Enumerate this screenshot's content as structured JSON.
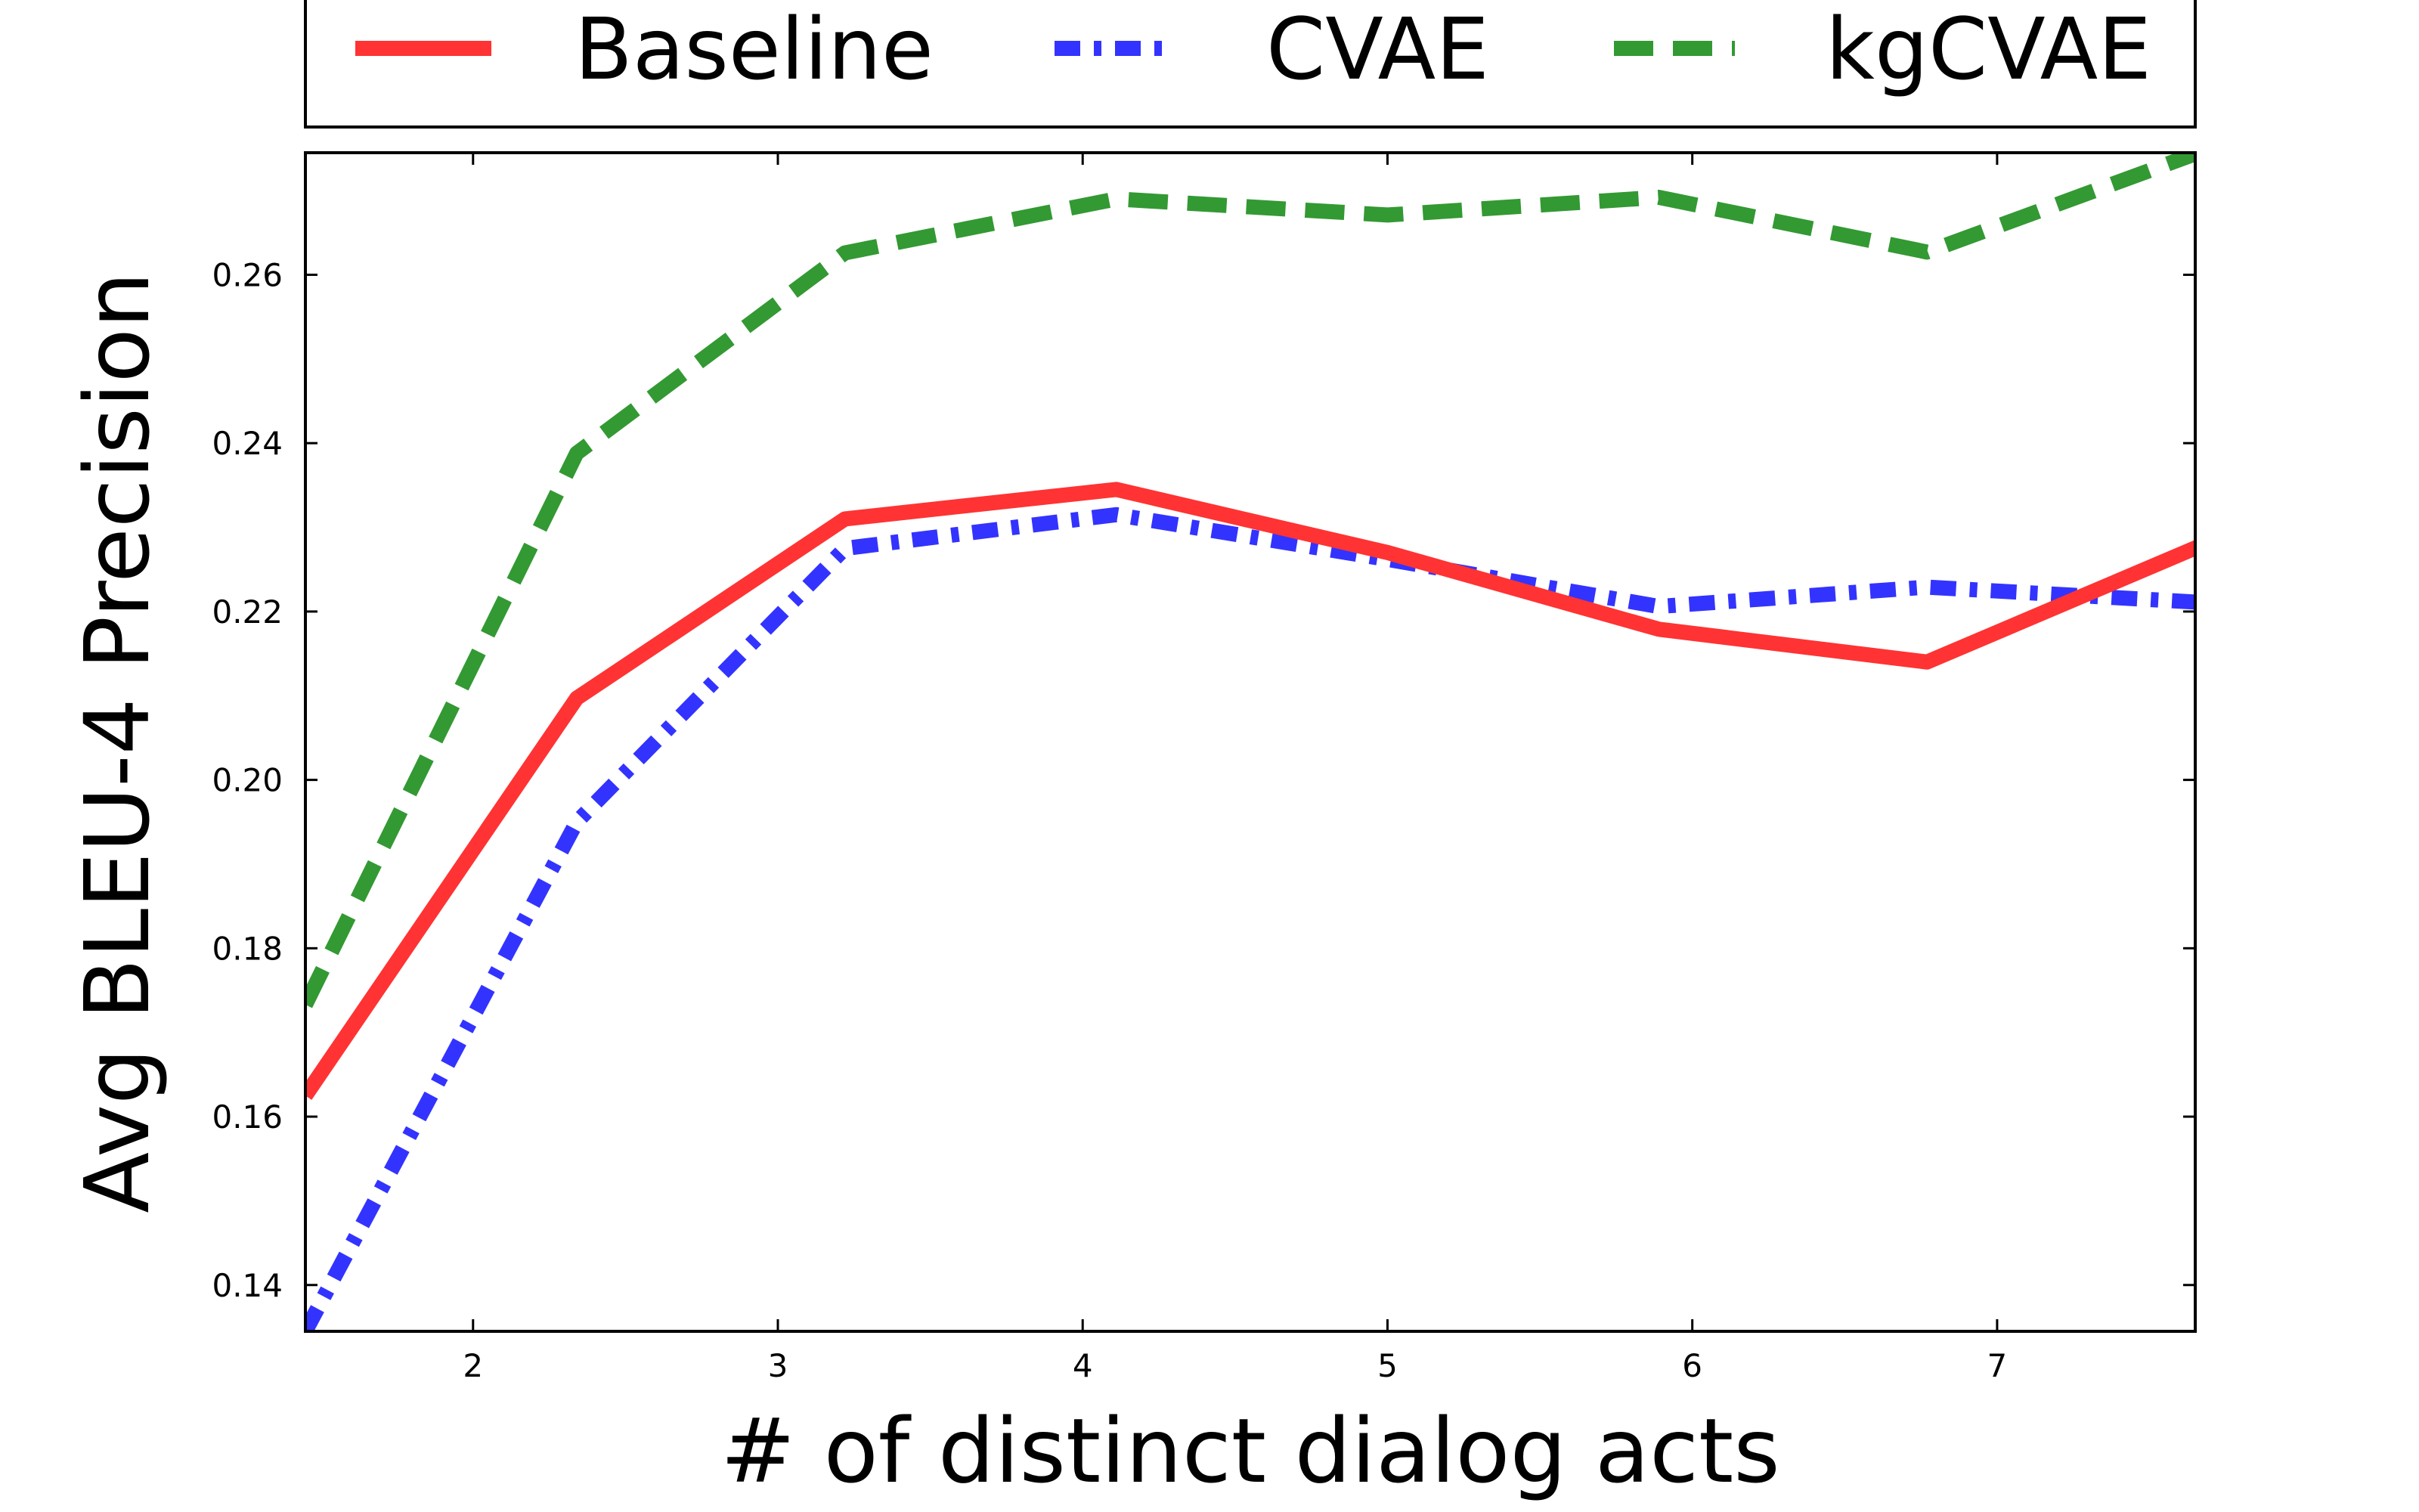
{
  "chart_data": {
    "type": "line",
    "title": "",
    "xlabel": "# of distinct dialog acts",
    "ylabel": "Avg BLEU-4 Precision",
    "xlim": [
      1.45,
      7.65
    ],
    "ylim": [
      0.1345,
      0.2745
    ],
    "xticks": [
      2,
      3,
      4,
      5,
      6,
      7
    ],
    "yticks": [
      0.14,
      0.16,
      0.18,
      0.2,
      0.22,
      0.24,
      0.26
    ],
    "x_tick_labels": [
      "2",
      "3",
      "4",
      "5",
      "6",
      "7"
    ],
    "y_tick_labels": [
      "0.14",
      "0.16",
      "0.18",
      "0.20",
      "0.22",
      "0.24",
      "0.26"
    ],
    "grid": false,
    "legend_position": "top, outside plot",
    "series": [
      {
        "name": "Baseline",
        "color": "#ff3333",
        "style": "solid",
        "x": [
          1.45,
          2.34,
          3.22,
          4.11,
          5.0,
          5.89,
          6.77,
          7.66
        ],
        "y": [
          0.1625,
          0.2097,
          0.231,
          0.2345,
          0.227,
          0.2179,
          0.214,
          0.2277
        ]
      },
      {
        "name": "CVAE",
        "color": "#3333ff",
        "style": "dashdot",
        "x": [
          1.45,
          2.34,
          3.22,
          4.11,
          5.0,
          5.89,
          6.77,
          7.66
        ],
        "y": [
          0.1345,
          0.195,
          0.2275,
          0.2315,
          0.2262,
          0.2206,
          0.2229,
          0.2211
        ]
      },
      {
        "name": "kgCVAE",
        "color": "#339933",
        "style": "dashed",
        "x": [
          1.45,
          2.34,
          3.22,
          4.11,
          5.0,
          5.89,
          6.77,
          7.66
        ],
        "y": [
          0.1733,
          0.2388,
          0.2626,
          0.269,
          0.2671,
          0.2692,
          0.2627,
          0.2745
        ]
      }
    ]
  }
}
